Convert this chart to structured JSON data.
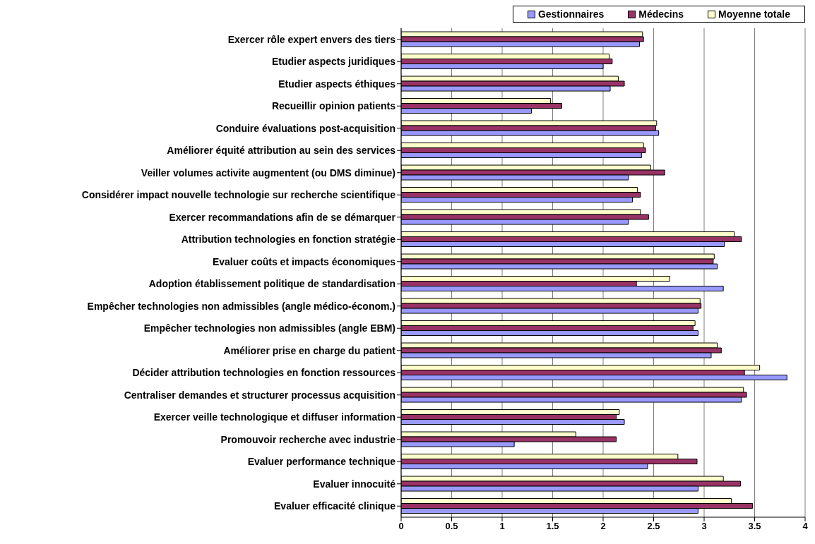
{
  "chart_data": {
    "type": "bar",
    "orientation": "horizontal",
    "categories": [
      "Exercer rôle expert envers des tiers",
      "Etudier aspects juridiques",
      "Etudier aspects éthiques",
      "Recueillir opinion patients",
      "Conduire évaluations post-acquisition",
      "Améliorer équité attribution au sein des services",
      "Veiller volumes activite augmentent (ou DMS diminue)",
      "Considérer impact nouvelle technologie sur recherche scientifique",
      "Exercer recommandations afin de se démarquer",
      "Attribution technologies en fonction stratégie",
      "Evaluer coûts et impacts économiques",
      "Adoption établissement politique de standardisation",
      "Empêcher technologies non admissibles (angle médico-économ.)",
      "Empêcher technologies non admissibles (angle EBM)",
      "Améliorer prise en charge du patient",
      "Décider attribution technologies en fonction ressources",
      "Centraliser demandes et structurer processus acquisition",
      "Exercer veille technologique et diffuser information",
      "Promouvoir recherche avec industrie",
      "Evaluer performance technique",
      "Evaluer innocuité",
      "Evaluer efficacité clinique"
    ],
    "series": [
      {
        "name": "Gestionnaires",
        "color": "#9999ff",
        "values": [
          2.36,
          2.0,
          2.07,
          1.29,
          2.55,
          2.38,
          2.25,
          2.29,
          2.25,
          3.2,
          3.13,
          3.19,
          2.94,
          2.94,
          3.07,
          3.82,
          3.37,
          2.21,
          1.12,
          2.44,
          2.94,
          2.94
        ]
      },
      {
        "name": "Médecins",
        "color": "#993366",
        "values": [
          2.4,
          2.09,
          2.21,
          1.59,
          2.52,
          2.42,
          2.61,
          2.37,
          2.45,
          3.37,
          3.09,
          2.33,
          2.97,
          2.89,
          3.17,
          3.4,
          3.42,
          2.13,
          2.13,
          2.93,
          3.36,
          3.48
        ]
      },
      {
        "name": "Moyenne totale",
        "color": "#ffffcc",
        "values": [
          2.39,
          2.06,
          2.15,
          1.48,
          2.53,
          2.4,
          2.47,
          2.34,
          2.37,
          3.3,
          3.1,
          2.66,
          2.96,
          2.91,
          3.13,
          3.55,
          3.39,
          2.16,
          1.73,
          2.74,
          3.19,
          3.27
        ]
      }
    ],
    "xlim": [
      0,
      4
    ],
    "xticks": [
      0,
      0.5,
      1,
      1.5,
      2,
      2.5,
      3,
      3.5,
      4
    ],
    "grid": "x",
    "legend": "top right"
  }
}
